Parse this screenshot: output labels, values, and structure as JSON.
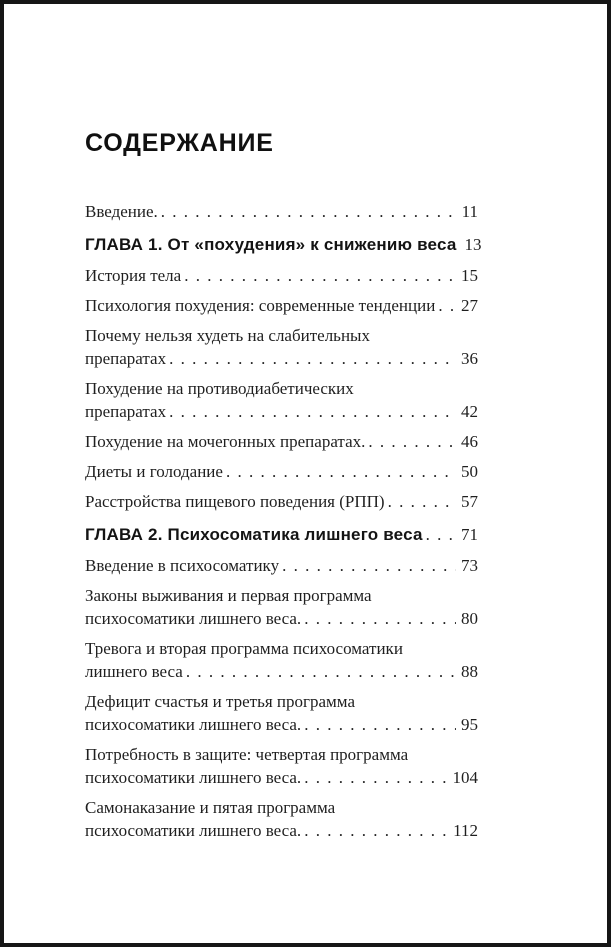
{
  "page": {
    "title": "СОДЕРЖАНИЕ"
  },
  "toc": {
    "items": [
      {
        "style": "entry",
        "lines": [
          "Введение."
        ],
        "page": "11"
      },
      {
        "style": "chapter",
        "lines": [
          "ГЛАВА 1. От «похудения» к снижению веса"
        ],
        "page": "13"
      },
      {
        "style": "entry",
        "lines": [
          "История тела"
        ],
        "page": "15"
      },
      {
        "style": "entry",
        "lines": [
          "Психология похудения: современные тенденции"
        ],
        "page": "27"
      },
      {
        "style": "entry",
        "lines": [
          "Почему нельзя худеть на слабительных",
          "препаратах"
        ],
        "page": "36"
      },
      {
        "style": "entry",
        "lines": [
          "Похудение на противодиабетических",
          "препаратах"
        ],
        "page": "42"
      },
      {
        "style": "entry",
        "lines": [
          "Похудение на мочегонных препаратах."
        ],
        "page": "46"
      },
      {
        "style": "entry",
        "lines": [
          "Диеты и голодание"
        ],
        "page": "50"
      },
      {
        "style": "entry",
        "lines": [
          "Расстройства пищевого поведения (РПП)"
        ],
        "page": "57"
      },
      {
        "style": "chapter",
        "lines": [
          "ГЛАВА 2. Психосоматика лишнего веса"
        ],
        "page": "71"
      },
      {
        "style": "entry",
        "lines": [
          "Введение в психосоматику"
        ],
        "page": "73"
      },
      {
        "style": "entry",
        "lines": [
          "Законы выживания и первая программа",
          "психосоматики лишнего веса."
        ],
        "page": "80"
      },
      {
        "style": "entry",
        "lines": [
          "Тревога и вторая программа психосоматики",
          "лишнего веса"
        ],
        "page": "88"
      },
      {
        "style": "entry",
        "lines": [
          "Дефицит счастья и третья программа",
          "психосоматики лишнего веса."
        ],
        "page": "95"
      },
      {
        "style": "entry",
        "lines": [
          "Потребность в защите: четвертая программа",
          "психосоматики лишнего веса."
        ],
        "page": "104"
      },
      {
        "style": "entry",
        "lines": [
          "Самонаказание и пятая программа",
          "психосоматики лишнего веса."
        ],
        "page": "112"
      }
    ]
  }
}
